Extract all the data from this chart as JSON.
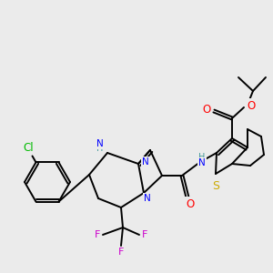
{
  "bg_color": "#ebebeb",
  "atom_colors": {
    "C": "#000000",
    "N": "#0000ff",
    "O": "#ff0000",
    "S": "#ccaa00",
    "F": "#cc00cc",
    "Cl": "#00bb00",
    "H": "#449999"
  },
  "line_color": "#000000",
  "line_width": 1.4,
  "font_size": 7.5
}
